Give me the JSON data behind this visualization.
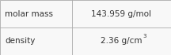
{
  "rows": [
    {
      "label": "molar mass",
      "value": "143.959 g/mol",
      "superscript": null
    },
    {
      "label": "density",
      "value": "2.36 g/cm",
      "superscript": "3"
    }
  ],
  "col_split": 0.42,
  "background_color": "#f8f8f8",
  "border_color": "#aaaaaa",
  "text_color": "#333333",
  "font_size": 7.5,
  "superscript_font_size": 5.0,
  "fig_width": 2.16,
  "fig_height": 0.7,
  "dpi": 100
}
